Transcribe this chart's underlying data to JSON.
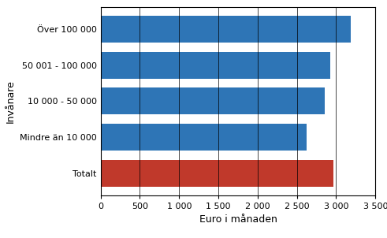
{
  "categories": [
    "Totalt",
    "Mindre än 10 000",
    "10 000 - 50 000",
    "50 001 - 100 000",
    "Över 100 000"
  ],
  "values": [
    2970,
    2620,
    2850,
    2930,
    3190
  ],
  "bar_colors": [
    "#c0392b",
    "#2e75b6",
    "#2e75b6",
    "#2e75b6",
    "#2e75b6"
  ],
  "ylabel": "Invånare",
  "xlabel": "Euro i månaden",
  "xlim": [
    0,
    3500
  ],
  "xticks": [
    0,
    500,
    1000,
    1500,
    2000,
    2500,
    3000,
    3500
  ],
  "xtick_labels": [
    "0",
    "500",
    "1 000",
    "1 500",
    "2 000",
    "2 500",
    "3 000",
    "3 500"
  ],
  "bar_height": 0.75,
  "background_color": "#ffffff",
  "figure_facecolor": "#ffffff",
  "spine_color": "#000000",
  "grid_color": "#000000",
  "grid_linewidth": 0.5,
  "tick_labelsize": 8,
  "axis_labelsize": 9,
  "ylabel_rotation": 90
}
